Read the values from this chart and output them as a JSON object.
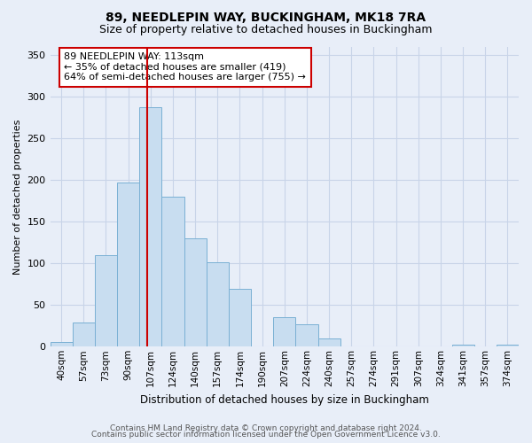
{
  "title": "89, NEEDLEPIN WAY, BUCKINGHAM, MK18 7RA",
  "subtitle": "Size of property relative to detached houses in Buckingham",
  "xlabel": "Distribution of detached houses by size in Buckingham",
  "ylabel": "Number of detached properties",
  "footer_line1": "Contains HM Land Registry data © Crown copyright and database right 2024.",
  "footer_line2": "Contains public sector information licensed under the Open Government Licence v3.0.",
  "bin_labels": [
    "40sqm",
    "57sqm",
    "73sqm",
    "90sqm",
    "107sqm",
    "124sqm",
    "140sqm",
    "157sqm",
    "174sqm",
    "190sqm",
    "207sqm",
    "224sqm",
    "240sqm",
    "257sqm",
    "274sqm",
    "291sqm",
    "307sqm",
    "324sqm",
    "341sqm",
    "357sqm",
    "374sqm"
  ],
  "bar_heights": [
    6,
    29,
    110,
    197,
    287,
    180,
    130,
    101,
    69,
    0,
    35,
    27,
    10,
    0,
    0,
    0,
    0,
    0,
    2,
    0,
    2
  ],
  "bar_color": "#c8ddf0",
  "bar_edge_color": "#7ab0d4",
  "highlight_bar_index": 4,
  "highlight_color": "#cc0000",
  "red_line_x": 4.35,
  "annotation_title": "89 NEEDLEPIN WAY: 113sqm",
  "annotation_line1": "← 35% of detached houses are smaller (419)",
  "annotation_line2": "64% of semi-detached houses are larger (755) →",
  "annotation_box_color": "#ffffff",
  "annotation_box_edge_color": "#cc0000",
  "ylim": [
    0,
    360
  ],
  "yticks": [
    0,
    50,
    100,
    150,
    200,
    250,
    300,
    350
  ],
  "grid_color": "#c8d4e8",
  "background_color": "#e8eef8",
  "title_fontsize": 10,
  "subtitle_fontsize": 9,
  "ylabel_fontsize": 8,
  "xlabel_fontsize": 8.5,
  "tick_fontsize": 7.5,
  "annotation_fontsize": 8,
  "footer_fontsize": 6.5,
  "footer_color": "#555555"
}
